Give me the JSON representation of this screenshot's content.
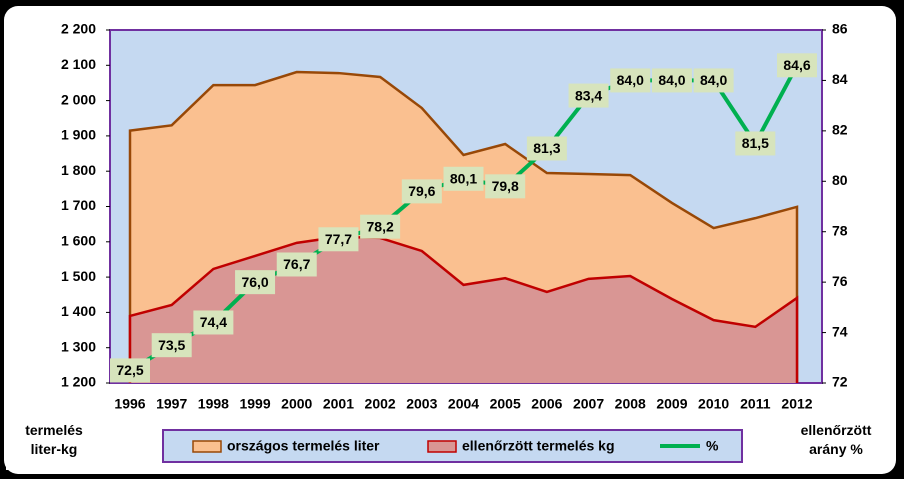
{
  "chart_data": {
    "type": "area-line",
    "categories": [
      "1996",
      "1997",
      "1998",
      "1999",
      "2000",
      "2001",
      "2002",
      "2003",
      "2004",
      "2005",
      "2006",
      "2007",
      "2008",
      "2009",
      "2010",
      "2011",
      "2012"
    ],
    "series": [
      {
        "name": "országos termelés liter",
        "color": "#fac090",
        "line_color": "#984807",
        "kind": "area",
        "values": [
          1915,
          1930,
          2044,
          2044,
          2081,
          2078,
          2067,
          1979,
          1846,
          1877,
          1795,
          1792,
          1789,
          1710,
          1639,
          1667,
          1699
        ]
      },
      {
        "name": "ellenőrzött termelés kg",
        "color": "#d99694",
        "line_color": "#c00000",
        "kind": "area",
        "values": [
          1390,
          1421,
          1523,
          1560,
          1597,
          1614,
          1611,
          1574,
          1478,
          1497,
          1458,
          1495,
          1503,
          1438,
          1378,
          1359,
          1441
        ]
      },
      {
        "name": "%",
        "color": "#00b050",
        "kind": "line",
        "axis": "y2",
        "values": [
          72.5,
          73.5,
          74.4,
          76.0,
          76.7,
          77.7,
          78.2,
          79.6,
          80.1,
          79.8,
          81.3,
          83.4,
          84.0,
          84.0,
          84.0,
          81.5,
          84.6
        ],
        "value_labels": [
          "72,5",
          "73,5",
          "74,4",
          "76,0",
          "76,7",
          "77,7",
          "78,2",
          "79,6",
          "80,1",
          "79,8",
          "81,3",
          "83,4",
          "84,0",
          "84,0",
          "84,0",
          "81,5",
          "84,6"
        ]
      }
    ],
    "ylim": [
      1200,
      2200
    ],
    "yticks": [
      {
        "value": 1200,
        "label": "1 200"
      },
      {
        "value": 1300,
        "label": "1 300"
      },
      {
        "value": 1400,
        "label": "1 400"
      },
      {
        "value": 1500,
        "label": "1 500"
      },
      {
        "value": 1600,
        "label": "1 600"
      },
      {
        "value": 1700,
        "label": "1 700"
      },
      {
        "value": 1800,
        "label": "1 800"
      },
      {
        "value": 1900,
        "label": "1 900"
      },
      {
        "value": 2000,
        "label": "2 000"
      },
      {
        "value": 2100,
        "label": "2 100"
      },
      {
        "value": 2200,
        "label": "2 200"
      }
    ],
    "y2lim": [
      72,
      86
    ],
    "y2ticks": [
      72,
      74,
      76,
      78,
      80,
      82,
      84,
      86
    ],
    "ylabel": "termelés liter-kg",
    "y2label": "ellenőrzött arány %"
  }
}
